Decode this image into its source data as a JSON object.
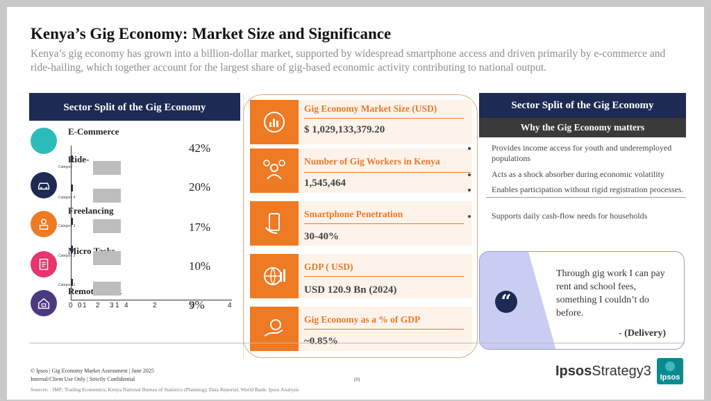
{
  "header": {
    "title": "Kenya’s Gig Economy: Market Size and Significance",
    "subtitle": "Kenya’s gig economy has grown into a billion-dollar market, supported by widespread smartphone access and driven primarily by e-commerce and ride-hailing, which together account for the largest share of gig-based economic activity contributing to national output."
  },
  "left_panel": {
    "header": "Sector Split of the Gig Economy",
    "sectors": [
      {
        "label": "E-Commerce",
        "pct": "42%",
        "icon": "ecommerce-icon",
        "color": "#2bbcb9"
      },
      {
        "label": "Ride-",
        "pct": "20%",
        "icon": "car-icon",
        "color": "#1c2a54"
      },
      {
        "label": "Freelancing",
        "pct": "17%",
        "icon": "freelancer-icon",
        "color": "#ef7a24"
      },
      {
        "label": "Micro Tasks",
        "pct": "10%",
        "icon": "checklist-icon",
        "color": "#e8356e"
      },
      {
        "label": "Remote Work",
        "pct": "9%",
        "icon": "remote-work-icon",
        "color": "#4b3a80"
      }
    ],
    "category_labels": [
      "Category 4",
      "Category 3",
      "Category 2",
      "Category 1"
    ],
    "category_top_label": "Category",
    "axis_ticks_a": [
      "0",
      "0",
      "1",
      "2",
      "3",
      "1",
      "4"
    ],
    "axis_ticks_b": [
      "2",
      "3",
      "4"
    ]
  },
  "middle_panel": {
    "items": [
      {
        "title": "Gig Economy Market Size (USD)",
        "value": "$ 1,029,133,379.20",
        "icon": "chart-icon"
      },
      {
        "title": "Number of Gig Workers in Kenya",
        "value": "1,545,464",
        "icon": "workers-icon"
      },
      {
        "title": "Smartphone Penetration",
        "value": "30-40%",
        "icon": "smartphone-icon"
      },
      {
        "title": "GDP ( USD)",
        "value": "USD 120.9 Bn (2024)",
        "icon": "globe-chart-icon"
      },
      {
        "title": "Gig Economy as a % of GDP",
        "value": "~0.85%",
        "icon": "money-hand-icon"
      }
    ]
  },
  "right_panel": {
    "header": "Sector Split of the Gig Economy",
    "subheader": "Why the Gig Economy matters",
    "bullets": [
      "Provides income access for youth and underemployed populations",
      "Acts as a shock absorber during economic volatility",
      "Enables participation without rigid registration processes.",
      "Supports daily cash-flow needs for households"
    ],
    "quote": {
      "text": "Through gig work I can pay rent and school fees, something I couldn’t do before.",
      "author": "- (Delivery)"
    }
  },
  "footer": {
    "line1": "© Ipsos | Gig Economy Market Assessment | June 2025",
    "line2": "Internal/Client Use Only | Strictly Confidential",
    "sources": "Sources: : IMF; Trading Economics; Kenya National Bureau of Statistics (Planning); Data Reportal; World Bank: Ipsos Analysis",
    "page": "(8)",
    "brand_bold": "Ipsos",
    "brand_rest": "Strategy3",
    "logo": "Ipsos"
  },
  "colors": {
    "navy": "#1c2a54",
    "orange": "#ef7a24",
    "teal": "#0a8a8e"
  }
}
